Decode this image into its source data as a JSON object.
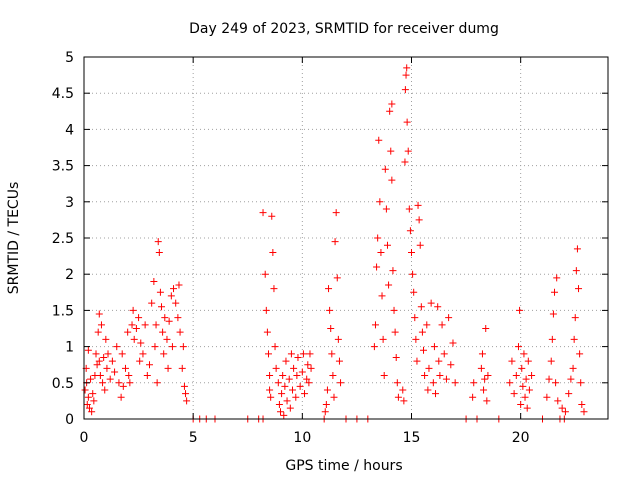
{
  "chart_data": {
    "type": "scatter",
    "title": "Day 249 of 2023, SRMTID for receiver dumg",
    "xlabel": "GPS time / hours",
    "ylabel": "SRMTID / TECUs",
    "xlim": [
      0,
      24
    ],
    "ylim": [
      0,
      5
    ],
    "xticks": [
      0,
      5,
      10,
      15,
      20
    ],
    "xtick_labels": [
      "0",
      "5",
      "10",
      "15",
      "20"
    ],
    "yticks": [
      0,
      0.5,
      1,
      1.5,
      2,
      2.5,
      3,
      3.5,
      4,
      4.5,
      5
    ],
    "ytick_labels": [
      "0",
      "0.5",
      "1",
      "1.5",
      "2",
      "2.5",
      "3",
      "3.5",
      "4",
      "4.5",
      "5"
    ],
    "grid": true,
    "marker": "+",
    "color": "#ff0000",
    "series": [
      {
        "name": "SRMTID",
        "points": [
          [
            0.05,
            0.4
          ],
          [
            0.1,
            0.7
          ],
          [
            0.12,
            0.5
          ],
          [
            0.15,
            0.2
          ],
          [
            0.2,
            0.95
          ],
          [
            0.2,
            0.3
          ],
          [
            0.25,
            0.15
          ],
          [
            0.3,
            0.55
          ],
          [
            0.35,
            0.1
          ],
          [
            0.4,
            0.35
          ],
          [
            0.45,
            0.25
          ],
          [
            0.5,
            0.6
          ],
          [
            0.55,
            0.9
          ],
          [
            0.6,
            0.75
          ],
          [
            0.65,
            1.2
          ],
          [
            0.7,
            1.45
          ],
          [
            0.7,
            0.8
          ],
          [
            0.75,
            0.6
          ],
          [
            0.8,
            1.3
          ],
          [
            0.85,
            0.5
          ],
          [
            0.9,
            0.85
          ],
          [
            0.95,
            0.4
          ],
          [
            1.0,
            1.1
          ],
          [
            1.05,
            0.7
          ],
          [
            1.1,
            0.9
          ],
          [
            1.2,
            0.55
          ],
          [
            1.3,
            0.8
          ],
          [
            1.4,
            0.65
          ],
          [
            1.5,
            1.0
          ],
          [
            1.6,
            0.5
          ],
          [
            1.7,
            0.3
          ],
          [
            1.75,
            0.9
          ],
          [
            1.8,
            0.45
          ],
          [
            1.9,
            0.7
          ],
          [
            2.0,
            1.2
          ],
          [
            2.05,
            0.6
          ],
          [
            2.1,
            0.5
          ],
          [
            2.2,
            1.3
          ],
          [
            2.25,
            1.5
          ],
          [
            2.3,
            1.1
          ],
          [
            2.4,
            1.25
          ],
          [
            2.5,
            1.4
          ],
          [
            2.55,
            0.8
          ],
          [
            2.6,
            1.05
          ],
          [
            2.7,
            0.9
          ],
          [
            2.8,
            1.3
          ],
          [
            2.9,
            0.6
          ],
          [
            3.0,
            0.75
          ],
          [
            3.1,
            1.6
          ],
          [
            3.2,
            1.9
          ],
          [
            3.25,
            1.0
          ],
          [
            3.3,
            1.3
          ],
          [
            3.35,
            0.5
          ],
          [
            3.4,
            2.45
          ],
          [
            3.45,
            2.3
          ],
          [
            3.5,
            1.75
          ],
          [
            3.55,
            1.55
          ],
          [
            3.6,
            1.2
          ],
          [
            3.65,
            0.9
          ],
          [
            3.7,
            1.4
          ],
          [
            3.8,
            1.1
          ],
          [
            3.85,
            0.7
          ],
          [
            3.9,
            1.35
          ],
          [
            4.0,
            1.7
          ],
          [
            4.05,
            1.0
          ],
          [
            4.1,
            1.8
          ],
          [
            4.2,
            1.6
          ],
          [
            4.3,
            1.4
          ],
          [
            4.35,
            1.85
          ],
          [
            4.4,
            1.2
          ],
          [
            4.5,
            0.7
          ],
          [
            4.55,
            1.0
          ],
          [
            4.6,
            0.45
          ],
          [
            4.65,
            0.35
          ],
          [
            4.7,
            0.25
          ],
          [
            5.0,
            0.0
          ],
          [
            5.3,
            0.0
          ],
          [
            5.6,
            0.0
          ],
          [
            6.0,
            0.0
          ],
          [
            7.5,
            0.0
          ],
          [
            8.0,
            0.0
          ],
          [
            8.2,
            0.0
          ],
          [
            8.2,
            2.85
          ],
          [
            8.3,
            2.0
          ],
          [
            8.35,
            1.5
          ],
          [
            8.4,
            1.2
          ],
          [
            8.45,
            0.9
          ],
          [
            8.5,
            0.6
          ],
          [
            8.5,
            0.4
          ],
          [
            8.55,
            0.3
          ],
          [
            8.6,
            2.8
          ],
          [
            8.65,
            2.3
          ],
          [
            8.7,
            1.8
          ],
          [
            8.75,
            1.0
          ],
          [
            8.8,
            0.7
          ],
          [
            8.9,
            0.5
          ],
          [
            8.95,
            0.2
          ],
          [
            9.0,
            0.1
          ],
          [
            9.05,
            0.35
          ],
          [
            9.1,
            0.6
          ],
          [
            9.15,
            0.05
          ],
          [
            9.2,
            0.45
          ],
          [
            9.25,
            0.8
          ],
          [
            9.3,
            0.25
          ],
          [
            9.4,
            0.55
          ],
          [
            9.45,
            0.15
          ],
          [
            9.5,
            0.9
          ],
          [
            9.55,
            0.4
          ],
          [
            9.6,
            0.7
          ],
          [
            9.7,
            0.3
          ],
          [
            9.75,
            0.6
          ],
          [
            9.8,
            0.85
          ],
          [
            9.9,
            0.45
          ],
          [
            10.0,
            0.65
          ],
          [
            10.05,
            0.9
          ],
          [
            10.1,
            0.35
          ],
          [
            10.2,
            0.55
          ],
          [
            10.25,
            0.75
          ],
          [
            10.3,
            0.5
          ],
          [
            10.35,
            0.9
          ],
          [
            10.4,
            0.7
          ],
          [
            11.0,
            0.0
          ],
          [
            11.05,
            0.1
          ],
          [
            11.1,
            0.2
          ],
          [
            11.15,
            0.4
          ],
          [
            11.2,
            1.8
          ],
          [
            11.25,
            1.5
          ],
          [
            11.3,
            1.25
          ],
          [
            11.35,
            0.9
          ],
          [
            11.4,
            0.6
          ],
          [
            11.45,
            0.3
          ],
          [
            11.5,
            2.45
          ],
          [
            11.55,
            2.85
          ],
          [
            11.6,
            1.95
          ],
          [
            11.65,
            1.1
          ],
          [
            11.7,
            0.8
          ],
          [
            11.75,
            0.5
          ],
          [
            12.0,
            0.0
          ],
          [
            12.5,
            0.0
          ],
          [
            13.0,
            0.0
          ],
          [
            13.3,
            1.0
          ],
          [
            13.35,
            1.3
          ],
          [
            13.4,
            2.1
          ],
          [
            13.45,
            2.5
          ],
          [
            13.5,
            3.85
          ],
          [
            13.55,
            3.0
          ],
          [
            13.6,
            2.3
          ],
          [
            13.65,
            1.7
          ],
          [
            13.7,
            1.1
          ],
          [
            13.75,
            0.6
          ],
          [
            13.8,
            3.45
          ],
          [
            13.85,
            2.9
          ],
          [
            13.9,
            2.4
          ],
          [
            13.95,
            1.85
          ],
          [
            14.0,
            4.25
          ],
          [
            14.05,
            3.7
          ],
          [
            14.1,
            3.3
          ],
          [
            14.1,
            4.35
          ],
          [
            14.15,
            2.05
          ],
          [
            14.2,
            1.5
          ],
          [
            14.25,
            1.2
          ],
          [
            14.3,
            0.85
          ],
          [
            14.35,
            0.5
          ],
          [
            14.4,
            0.3
          ],
          [
            14.6,
            0.4
          ],
          [
            14.65,
            0.25
          ],
          [
            14.7,
            3.55
          ],
          [
            14.72,
            4.55
          ],
          [
            14.75,
            4.75
          ],
          [
            14.78,
            4.85
          ],
          [
            14.8,
            4.1
          ],
          [
            14.85,
            3.7
          ],
          [
            14.9,
            2.9
          ],
          [
            14.95,
            2.6
          ],
          [
            15.0,
            2.3
          ],
          [
            15.05,
            2.0
          ],
          [
            15.1,
            1.75
          ],
          [
            15.15,
            1.4
          ],
          [
            15.2,
            1.1
          ],
          [
            15.25,
            0.8
          ],
          [
            15.3,
            2.95
          ],
          [
            15.35,
            2.75
          ],
          [
            15.4,
            2.4
          ],
          [
            15.45,
            1.55
          ],
          [
            15.5,
            1.2
          ],
          [
            15.55,
            0.95
          ],
          [
            15.6,
            0.6
          ],
          [
            15.7,
            1.3
          ],
          [
            15.75,
            0.4
          ],
          [
            15.8,
            0.7
          ],
          [
            15.9,
            1.6
          ],
          [
            16.0,
            0.5
          ],
          [
            16.05,
            1.0
          ],
          [
            16.1,
            0.35
          ],
          [
            16.2,
            1.55
          ],
          [
            16.25,
            0.8
          ],
          [
            16.3,
            0.6
          ],
          [
            16.4,
            1.3
          ],
          [
            16.5,
            0.9
          ],
          [
            16.6,
            0.55
          ],
          [
            16.7,
            1.4
          ],
          [
            16.8,
            0.75
          ],
          [
            16.9,
            1.05
          ],
          [
            17.0,
            0.5
          ],
          [
            17.5,
            0.0
          ],
          [
            18.0,
            0.0
          ],
          [
            17.8,
            0.3
          ],
          [
            17.85,
            0.5
          ],
          [
            18.2,
            0.7
          ],
          [
            18.25,
            0.9
          ],
          [
            18.3,
            0.4
          ],
          [
            18.35,
            0.55
          ],
          [
            18.4,
            1.25
          ],
          [
            18.45,
            0.25
          ],
          [
            18.5,
            0.6
          ],
          [
            19.0,
            0.0
          ],
          [
            19.5,
            0.5
          ],
          [
            19.6,
            0.8
          ],
          [
            19.7,
            0.35
          ],
          [
            19.8,
            0.6
          ],
          [
            19.9,
            1.0
          ],
          [
            19.95,
            1.5
          ],
          [
            20.0,
            0.2
          ],
          [
            20.05,
            0.7
          ],
          [
            20.1,
            0.45
          ],
          [
            20.15,
            0.9
          ],
          [
            20.2,
            0.3
          ],
          [
            20.25,
            0.55
          ],
          [
            20.3,
            0.15
          ],
          [
            20.35,
            0.8
          ],
          [
            20.4,
            0.4
          ],
          [
            20.5,
            0.6
          ],
          [
            21.0,
            0.0
          ],
          [
            21.2,
            0.3
          ],
          [
            21.3,
            0.55
          ],
          [
            21.4,
            0.8
          ],
          [
            21.45,
            1.1
          ],
          [
            21.5,
            1.45
          ],
          [
            21.55,
            1.75
          ],
          [
            21.6,
            0.5
          ],
          [
            21.65,
            1.95
          ],
          [
            21.7,
            0.25
          ],
          [
            21.8,
            0.0
          ],
          [
            21.9,
            0.15
          ],
          [
            22.0,
            0.0
          ],
          [
            22.05,
            0.1
          ],
          [
            22.2,
            0.35
          ],
          [
            22.3,
            0.55
          ],
          [
            22.4,
            0.7
          ],
          [
            22.45,
            1.1
          ],
          [
            22.5,
            1.4
          ],
          [
            22.55,
            2.05
          ],
          [
            22.6,
            2.35
          ],
          [
            22.65,
            1.8
          ],
          [
            22.7,
            0.9
          ],
          [
            22.75,
            0.5
          ],
          [
            22.8,
            0.2
          ],
          [
            22.9,
            0.1
          ]
        ]
      }
    ]
  }
}
